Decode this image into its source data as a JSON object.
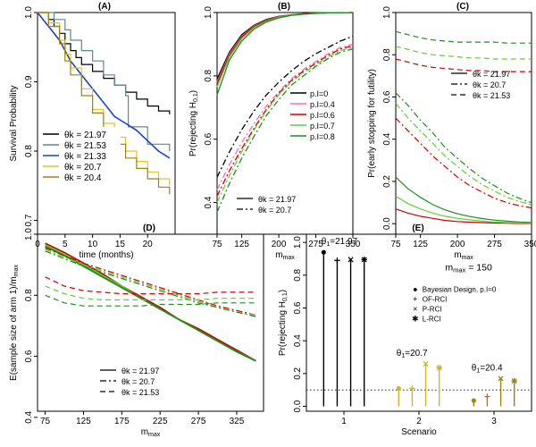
{
  "chart_data": [
    {
      "id": "A",
      "type": "step",
      "title": "(A)",
      "xlabel": "time (months)",
      "ylabel": "Survival Probability",
      "xlim": [
        0,
        25
      ],
      "ylim": [
        0.68,
        1.0
      ],
      "xticks": [
        "0",
        "5",
        "10",
        "15",
        "20"
      ],
      "xtick_values": [
        0,
        5,
        10,
        15,
        20
      ],
      "yticks": [
        "0.7",
        "0.8",
        "0.9",
        "1.0"
      ],
      "ytick_values": [
        0.7,
        0.8,
        0.9,
        1.0
      ],
      "legend_position": "bottom-left",
      "series": [
        {
          "name": "θk = 21.97",
          "color": "#000000",
          "kind": "km",
          "x": [
            0,
            2,
            3,
            4,
            5,
            6,
            7,
            8,
            10,
            12,
            14,
            16,
            18,
            20,
            22,
            24
          ],
          "y": [
            1.0,
            0.99,
            0.98,
            0.97,
            0.955,
            0.945,
            0.935,
            0.925,
            0.915,
            0.905,
            0.895,
            0.885,
            0.875,
            0.865,
            0.858,
            0.853
          ]
        },
        {
          "name": "θk = 21.53",
          "color": "#5f8a8b",
          "kind": "km",
          "x": [
            0,
            3,
            5,
            6,
            8,
            10,
            12,
            14,
            16,
            16.5,
            18,
            20,
            22,
            24
          ],
          "y": [
            1.0,
            0.99,
            0.975,
            0.96,
            0.945,
            0.93,
            0.91,
            0.895,
            0.88,
            0.835,
            0.835,
            0.81,
            0.81,
            0.8
          ]
        },
        {
          "name": "θk = 21.33",
          "color": "#1f3fd0",
          "kind": "line",
          "x": [
            0,
            2,
            4,
            6,
            8,
            10,
            12,
            14,
            16,
            18,
            20,
            22,
            24
          ],
          "y": [
            1.0,
            0.98,
            0.96,
            0.93,
            0.91,
            0.89,
            0.87,
            0.85,
            0.84,
            0.83,
            0.815,
            0.8,
            0.79
          ]
        },
        {
          "name": "θk = 20.7",
          "color": "#e6c224",
          "kind": "km",
          "x": [
            0,
            2,
            4,
            5,
            6,
            8,
            10,
            12,
            14,
            16,
            18,
            20,
            22,
            24
          ],
          "y": [
            1.0,
            0.985,
            0.96,
            0.94,
            0.92,
            0.89,
            0.86,
            0.84,
            0.82,
            0.8,
            0.785,
            0.77,
            0.76,
            0.75
          ]
        },
        {
          "name": "θk = 20.4",
          "color": "#9b8411",
          "kind": "km",
          "x": [
            0,
            2,
            4,
            5,
            6,
            8,
            10,
            12,
            14,
            16,
            18,
            20,
            22,
            24
          ],
          "y": [
            1.0,
            0.98,
            0.955,
            0.93,
            0.91,
            0.88,
            0.855,
            0.83,
            0.81,
            0.79,
            0.775,
            0.76,
            0.748,
            0.738
          ]
        }
      ]
    },
    {
      "id": "B",
      "type": "line",
      "title": "(B)",
      "xlabel": "m",
      "xlabel_sub": "max",
      "ylabel": "Pr(rejecting H",
      "ylabel_sub": "0,1",
      "ylabel_end": ")",
      "xlim": [
        75,
        350
      ],
      "ylim": [
        0.3,
        1.0
      ],
      "xticks": [
        "75",
        "125",
        "200",
        "275",
        "350"
      ],
      "xtick_values": [
        75,
        125,
        200,
        275,
        350
      ],
      "yticks": [
        "0.4",
        "0.6",
        "0.8",
        "1.0"
      ],
      "ytick_values": [
        0.4,
        0.6,
        0.8,
        1.0
      ],
      "x": [
        75,
        100,
        125,
        150,
        175,
        200,
        225,
        250,
        275,
        300,
        325,
        350
      ],
      "legend_pl": [
        {
          "label": "p.I=0",
          "color": "#000000"
        },
        {
          "label": "p.I=0.4",
          "color": "#ff69b4"
        },
        {
          "label": "p.I=0.6",
          "color": "#cc0000"
        },
        {
          "label": "p.I=0.7",
          "color": "#66cc33"
        },
        {
          "label": "p.I=0.8",
          "color": "#1e8c1e"
        }
      ],
      "legend_theta": [
        {
          "label": "θk = 21.97",
          "dash": "solid"
        },
        {
          "label": "θk = 20.7",
          "dash": "dashdot"
        }
      ],
      "series": [
        {
          "name": "p.I=0 θ21.97",
          "color": "#000000",
          "dash": "solid",
          "values": [
            0.79,
            0.875,
            0.93,
            0.96,
            0.978,
            0.988,
            0.993,
            0.996,
            0.998,
            0.999,
            0.999,
            1.0
          ]
        },
        {
          "name": "p.I=0.4 θ21.97",
          "color": "#ff69b4",
          "dash": "solid",
          "values": [
            0.78,
            0.87,
            0.925,
            0.958,
            0.976,
            0.987,
            0.993,
            0.996,
            0.998,
            0.999,
            0.999,
            1.0
          ]
        },
        {
          "name": "p.I=0.6 θ21.97",
          "color": "#cc0000",
          "dash": "solid",
          "values": [
            0.775,
            0.865,
            0.922,
            0.956,
            0.975,
            0.986,
            0.992,
            0.996,
            0.998,
            0.999,
            0.999,
            1.0
          ]
        },
        {
          "name": "p.I=0.7 θ21.97",
          "color": "#66cc33",
          "dash": "solid",
          "values": [
            0.765,
            0.86,
            0.918,
            0.953,
            0.973,
            0.985,
            0.992,
            0.995,
            0.998,
            0.999,
            0.999,
            1.0
          ]
        },
        {
          "name": "p.I=0.8 θ21.97",
          "color": "#1e8c1e",
          "dash": "solid",
          "values": [
            0.74,
            0.85,
            0.91,
            0.948,
            0.97,
            0.983,
            0.991,
            0.995,
            0.997,
            0.999,
            0.999,
            1.0
          ]
        },
        {
          "name": "p.I=0 θ20.7",
          "color": "#000000",
          "dash": "dashdot",
          "values": [
            0.48,
            0.56,
            0.63,
            0.69,
            0.74,
            0.78,
            0.815,
            0.845,
            0.87,
            0.89,
            0.91,
            0.925
          ]
        },
        {
          "name": "p.I=0.4 θ20.7",
          "color": "#ff69b4",
          "dash": "dashdot",
          "values": [
            0.44,
            0.52,
            0.59,
            0.65,
            0.705,
            0.75,
            0.79,
            0.82,
            0.845,
            0.87,
            0.89,
            0.9
          ]
        },
        {
          "name": "p.I=0.6 θ20.7",
          "color": "#cc0000",
          "dash": "dashdot",
          "values": [
            0.42,
            0.5,
            0.57,
            0.635,
            0.695,
            0.745,
            0.785,
            0.815,
            0.84,
            0.865,
            0.885,
            0.895
          ]
        },
        {
          "name": "p.I=0.7 θ20.7",
          "color": "#66cc33",
          "dash": "dashdot",
          "values": [
            0.4,
            0.485,
            0.56,
            0.63,
            0.69,
            0.74,
            0.78,
            0.81,
            0.835,
            0.86,
            0.88,
            0.89
          ]
        },
        {
          "name": "p.I=0.8 θ20.7",
          "color": "#1e8c1e",
          "dash": "dashdot",
          "values": [
            0.37,
            0.46,
            0.54,
            0.61,
            0.675,
            0.725,
            0.77,
            0.8,
            0.83,
            0.855,
            0.875,
            0.885
          ]
        }
      ]
    },
    {
      "id": "C",
      "type": "line",
      "title": "(C)",
      "xlabel": "m",
      "xlabel_sub": "max",
      "ylabel": "Pr(early stopping for futility)",
      "xlim": [
        75,
        350
      ],
      "ylim": [
        -0.05,
        1.0
      ],
      "xticks": [
        "75",
        "125",
        "200",
        "275",
        "350"
      ],
      "xtick_values": [
        75,
        125,
        200,
        275,
        350
      ],
      "yticks": [
        "0.0",
        "0.2",
        "0.4",
        "0.6",
        "0.8",
        "1.0"
      ],
      "ytick_values": [
        0,
        0.2,
        0.4,
        0.6,
        0.8,
        1.0
      ],
      "x": [
        75,
        100,
        125,
        150,
        175,
        200,
        225,
        250,
        275,
        300,
        325,
        350
      ],
      "legend": [
        {
          "label": "θk = 21.97",
          "dash": "solid"
        },
        {
          "label": "θk = 20.7",
          "dash": "dashdot"
        },
        {
          "label": "θk = 21.53",
          "dash": "dashed"
        }
      ],
      "series": [
        {
          "name": "θ21.97 a",
          "color": "#cc0000",
          "dash": "solid",
          "values": [
            0.07,
            0.05,
            0.035,
            0.025,
            0.015,
            0.01,
            0.007,
            0.005,
            0.003,
            0.002,
            0.001,
            0.001
          ]
        },
        {
          "name": "θ21.97 b",
          "color": "#66cc33",
          "dash": "solid",
          "values": [
            0.13,
            0.095,
            0.07,
            0.05,
            0.035,
            0.025,
            0.018,
            0.012,
            0.008,
            0.005,
            0.003,
            0.002
          ]
        },
        {
          "name": "θ21.97 c",
          "color": "#1e8c1e",
          "dash": "solid",
          "values": [
            0.22,
            0.165,
            0.125,
            0.09,
            0.065,
            0.047,
            0.034,
            0.024,
            0.017,
            0.012,
            0.008,
            0.006
          ]
        },
        {
          "name": "θ20.7 a",
          "color": "#cc0000",
          "dash": "dashdot",
          "values": [
            0.5,
            0.44,
            0.38,
            0.32,
            0.27,
            0.22,
            0.18,
            0.15,
            0.12,
            0.1,
            0.085,
            0.075
          ]
        },
        {
          "name": "θ20.7 b",
          "color": "#66cc33",
          "dash": "dashdot",
          "values": [
            0.57,
            0.5,
            0.44,
            0.38,
            0.32,
            0.27,
            0.225,
            0.185,
            0.155,
            0.125,
            0.105,
            0.09
          ]
        },
        {
          "name": "θ20.7 c",
          "color": "#1e8c1e",
          "dash": "dashdot",
          "values": [
            0.62,
            0.56,
            0.49,
            0.43,
            0.36,
            0.31,
            0.26,
            0.215,
            0.18,
            0.145,
            0.12,
            0.1
          ]
        },
        {
          "name": "θ21.53 a",
          "color": "#cc0000",
          "dash": "dashed",
          "values": [
            0.78,
            0.765,
            0.75,
            0.74,
            0.735,
            0.73,
            0.725,
            0.725,
            0.72,
            0.72,
            0.72,
            0.72
          ]
        },
        {
          "name": "θ21.53 b",
          "color": "#66cc33",
          "dash": "dashed",
          "values": [
            0.84,
            0.825,
            0.81,
            0.8,
            0.795,
            0.79,
            0.785,
            0.785,
            0.78,
            0.78,
            0.78,
            0.78
          ]
        },
        {
          "name": "θ21.53 c",
          "color": "#1e8c1e",
          "dash": "dashed",
          "values": [
            0.91,
            0.895,
            0.88,
            0.87,
            0.865,
            0.86,
            0.86,
            0.86,
            0.86,
            0.855,
            0.855,
            0.855
          ]
        }
      ]
    },
    {
      "id": "D",
      "type": "line",
      "title": "(D)",
      "xlabel": "m",
      "xlabel_sub": "max",
      "ylabel": "E(sample size of arm 1)/m",
      "ylabel_sub": "max",
      "xlim": [
        65,
        360
      ],
      "ylim": [
        0.42,
        1.0
      ],
      "xticks": [
        "75",
        "125",
        "175",
        "225",
        "275",
        "325"
      ],
      "xtick_values": [
        75,
        125,
        175,
        225,
        275,
        325
      ],
      "yticks": [
        "0.4",
        "0.6",
        "0.8",
        "1.0"
      ],
      "ytick_values": [
        0.4,
        0.6,
        0.8,
        1.0
      ],
      "x": [
        75,
        100,
        125,
        150,
        175,
        200,
        225,
        250,
        275,
        300,
        325,
        350
      ],
      "legend": [
        {
          "label": "θk = 21.97",
          "dash": "solid"
        },
        {
          "label": "θk = 20.7",
          "dash": "dashdot"
        },
        {
          "label": "θk = 21.53",
          "dash": "dashed"
        }
      ],
      "series": [
        {
          "name": "θ21.97 a",
          "color": "#cc0000",
          "dash": "solid",
          "values": [
            0.97,
            0.94,
            0.905,
            0.87,
            0.83,
            0.795,
            0.76,
            0.72,
            0.69,
            0.655,
            0.62,
            0.585
          ]
        },
        {
          "name": "θ21.97 b",
          "color": "#66cc33",
          "dash": "solid",
          "values": [
            0.965,
            0.935,
            0.9,
            0.865,
            0.83,
            0.79,
            0.755,
            0.72,
            0.685,
            0.65,
            0.615,
            0.585
          ]
        },
        {
          "name": "θ21.97 c",
          "color": "#1e8c1e",
          "dash": "solid",
          "values": [
            0.96,
            0.93,
            0.895,
            0.86,
            0.825,
            0.79,
            0.755,
            0.72,
            0.685,
            0.65,
            0.615,
            0.585
          ]
        },
        {
          "name": "θ20.7 a",
          "color": "#cc0000",
          "dash": "dashdot",
          "values": [
            0.955,
            0.93,
            0.905,
            0.885,
            0.865,
            0.845,
            0.825,
            0.805,
            0.785,
            0.765,
            0.75,
            0.735
          ]
        },
        {
          "name": "θ20.7 b",
          "color": "#66cc33",
          "dash": "dashdot",
          "values": [
            0.95,
            0.925,
            0.9,
            0.88,
            0.86,
            0.84,
            0.82,
            0.8,
            0.78,
            0.76,
            0.745,
            0.735
          ]
        },
        {
          "name": "θ20.7 c",
          "color": "#1e8c1e",
          "dash": "dashdot",
          "values": [
            0.945,
            0.92,
            0.895,
            0.875,
            0.855,
            0.835,
            0.815,
            0.795,
            0.775,
            0.76,
            0.745,
            0.73
          ]
        },
        {
          "name": "θ21.53 a",
          "color": "#cc0000",
          "dash": "dashed",
          "values": [
            0.86,
            0.83,
            0.815,
            0.81,
            0.805,
            0.805,
            0.805,
            0.805,
            0.805,
            0.81,
            0.81,
            0.81
          ]
        },
        {
          "name": "θ21.53 b",
          "color": "#66cc33",
          "dash": "dashed",
          "values": [
            0.83,
            0.805,
            0.79,
            0.785,
            0.785,
            0.785,
            0.785,
            0.785,
            0.785,
            0.79,
            0.79,
            0.79
          ]
        },
        {
          "name": "θ21.53 c",
          "color": "#1e8c1e",
          "dash": "dashed",
          "values": [
            0.8,
            0.775,
            0.765,
            0.765,
            0.765,
            0.765,
            0.77,
            0.77,
            0.77,
            0.775,
            0.775,
            0.775
          ]
        }
      ]
    },
    {
      "id": "E",
      "type": "lollipop",
      "title": "(E)",
      "xlabel": "Scenario",
      "ylabel": "Pr(rejecting H",
      "ylabel_sub": "0,1",
      "ylabel_end": ")",
      "xlim": [
        0.5,
        3.5
      ],
      "ylim": [
        -0.03,
        1.05
      ],
      "xticks": [
        "1",
        "2",
        "3"
      ],
      "xtick_values": [
        1,
        2,
        3
      ],
      "yticks": [
        "0.0",
        "0.2",
        "0.4",
        "0.6",
        "0.8",
        "1.0"
      ],
      "ytick_values": [
        0,
        0.2,
        0.4,
        0.6,
        0.8,
        1.0
      ],
      "reference_line": 0.1,
      "mmax_label": "m",
      "mmax_sub": "max",
      "mmax_value": " = 150",
      "legend": [
        {
          "label": "Bayesian Design, p.I=0",
          "symbol": "●"
        },
        {
          "label": "OF-RCI",
          "symbol": "+"
        },
        {
          "label": "P-RCI",
          "symbol": "×"
        },
        {
          "label": "L-RCI",
          "symbol": "✱"
        }
      ],
      "groups": [
        {
          "scenario": 1,
          "label": "θ",
          "label_sub": "1",
          "label_value": "=21.97",
          "color": "#000000",
          "values": [
            0.94,
            0.89,
            0.895,
            0.895
          ]
        },
        {
          "scenario": 2,
          "label": "θ",
          "label_sub": "1",
          "label_value": "=20.7",
          "color": "#d2b42a",
          "values": [
            0.11,
            0.11,
            0.26,
            0.235
          ]
        },
        {
          "scenario": 3,
          "label": "θ",
          "label_sub": "1",
          "label_value": "=20.4",
          "color": "#9b8411",
          "values": [
            0.035,
            0.06,
            0.17,
            0.155
          ]
        }
      ]
    }
  ]
}
